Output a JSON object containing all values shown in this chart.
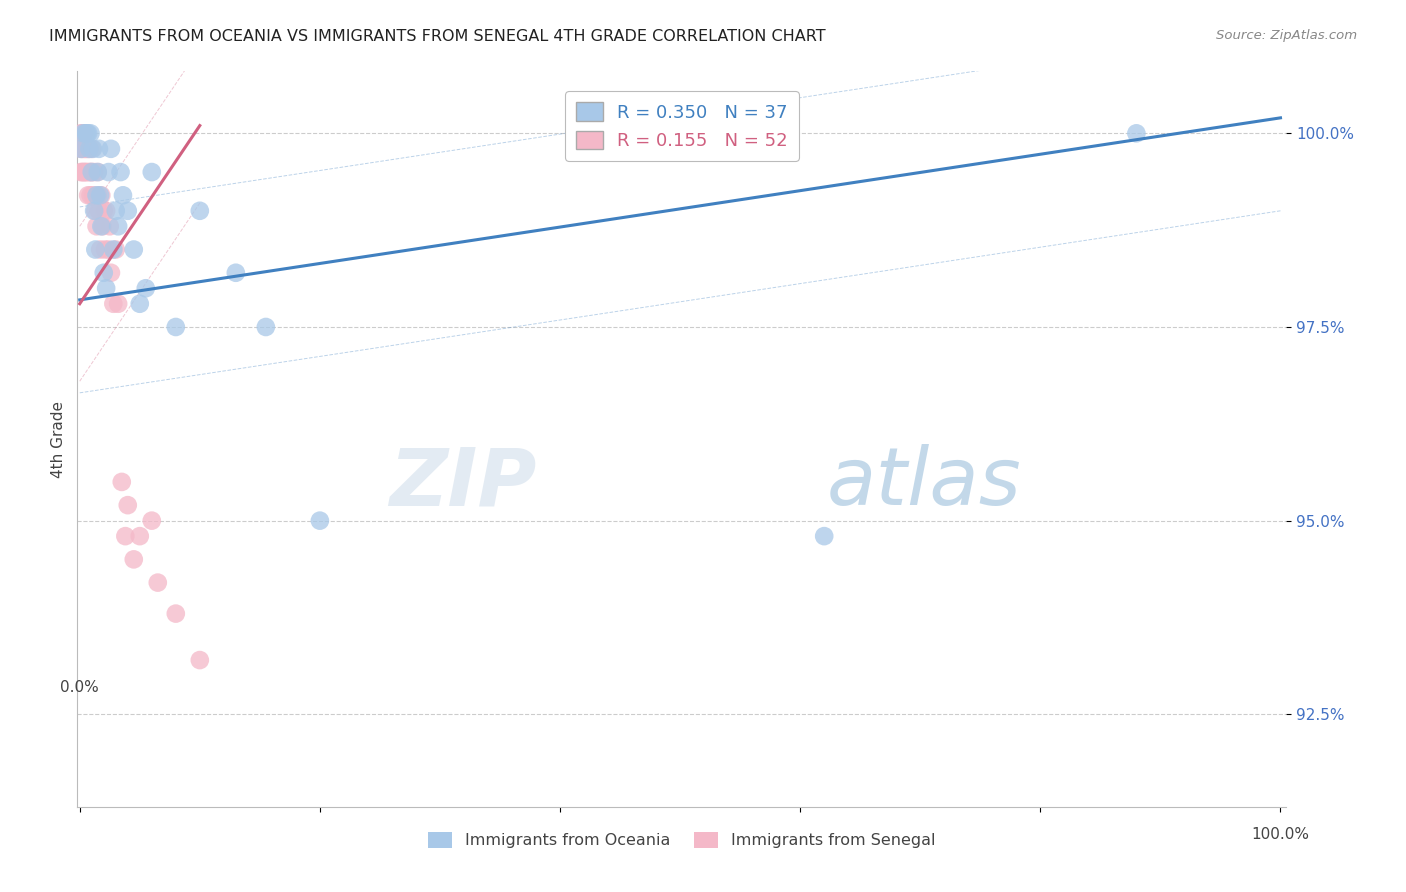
{
  "title": "IMMIGRANTS FROM OCEANIA VS IMMIGRANTS FROM SENEGAL 4TH GRADE CORRELATION CHART",
  "source": "Source: ZipAtlas.com",
  "ylabel": "4th Grade",
  "watermark_zip": "ZIP",
  "watermark_atlas": "atlas",
  "legend_oceania": "Immigrants from Oceania",
  "legend_senegal": "Immigrants from Senegal",
  "R_oceania": 0.35,
  "N_oceania": 37,
  "R_senegal": 0.155,
  "N_senegal": 52,
  "color_oceania": "#a8c8e8",
  "color_senegal": "#f4b8c8",
  "line_color_oceania": "#4080c0",
  "line_color_senegal": "#d06080",
  "yticks": [
    92.5,
    95.0,
    97.5,
    100.0
  ],
  "ylim": [
    91.3,
    100.8
  ],
  "xlim": [
    -0.002,
    1.005
  ],
  "oceania_x": [
    0.001,
    0.003,
    0.005,
    0.006,
    0.007,
    0.008,
    0.009,
    0.01,
    0.011,
    0.012,
    0.013,
    0.014,
    0.015,
    0.016,
    0.017,
    0.018,
    0.02,
    0.022,
    0.024,
    0.026,
    0.028,
    0.03,
    0.032,
    0.034,
    0.036,
    0.04,
    0.045,
    0.05,
    0.055,
    0.06,
    0.08,
    0.1,
    0.13,
    0.155,
    0.2,
    0.62,
    0.88
  ],
  "oceania_y": [
    99.8,
    100.0,
    100.0,
    100.0,
    100.0,
    99.8,
    100.0,
    99.5,
    99.8,
    99.0,
    98.5,
    99.2,
    99.5,
    99.8,
    99.2,
    98.8,
    98.2,
    98.0,
    99.5,
    99.8,
    98.5,
    99.0,
    98.8,
    99.5,
    99.2,
    99.0,
    98.5,
    97.8,
    98.0,
    99.5,
    97.5,
    99.0,
    98.2,
    97.5,
    95.0,
    94.8,
    100.0
  ],
  "senegal_x": [
    0.001,
    0.001,
    0.001,
    0.002,
    0.002,
    0.002,
    0.003,
    0.003,
    0.003,
    0.004,
    0.004,
    0.005,
    0.005,
    0.005,
    0.006,
    0.006,
    0.007,
    0.007,
    0.008,
    0.008,
    0.009,
    0.009,
    0.01,
    0.01,
    0.011,
    0.012,
    0.013,
    0.014,
    0.015,
    0.015,
    0.016,
    0.017,
    0.018,
    0.019,
    0.02,
    0.021,
    0.022,
    0.024,
    0.025,
    0.026,
    0.028,
    0.03,
    0.032,
    0.035,
    0.038,
    0.04,
    0.045,
    0.05,
    0.06,
    0.065,
    0.08,
    0.1
  ],
  "senegal_y": [
    100.0,
    99.8,
    99.5,
    99.8,
    100.0,
    99.5,
    100.0,
    99.8,
    99.5,
    99.8,
    99.5,
    100.0,
    99.8,
    99.5,
    99.8,
    99.5,
    99.8,
    99.2,
    99.5,
    99.8,
    99.5,
    99.2,
    99.8,
    99.5,
    99.2,
    99.5,
    99.0,
    98.8,
    99.5,
    99.2,
    99.0,
    98.5,
    99.2,
    98.8,
    99.0,
    98.5,
    99.0,
    98.5,
    98.8,
    98.2,
    97.8,
    98.5,
    97.8,
    95.5,
    94.8,
    95.2,
    94.5,
    94.8,
    95.0,
    94.2,
    93.8,
    93.2
  ]
}
